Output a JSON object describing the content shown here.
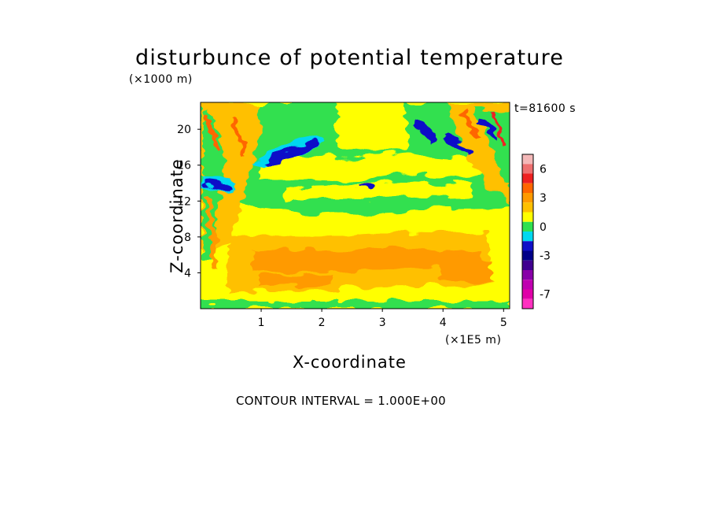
{
  "chart_data": {
    "type": "heatmap",
    "title": "disturbunce of potential temperature",
    "ylabel": "Z-coordinate",
    "xlabel": "X-coordinate",
    "y_unit_label": "(×1000 m)",
    "x_unit_label": "(×1E5 m)",
    "time_label": "t=81600 s",
    "contour_interval_label": "CONTOUR INTERVAL = 1.000E+00",
    "x_ticks": [
      "1",
      "2",
      "3",
      "4",
      "5"
    ],
    "x_tick_values": [
      1,
      2,
      3,
      4,
      5
    ],
    "y_ticks": [
      "4",
      "8",
      "12",
      "16",
      "20"
    ],
    "y_tick_values": [
      4,
      8,
      12,
      16,
      20
    ],
    "xlim": [
      0,
      5.1
    ],
    "ylim": [
      0,
      23
    ],
    "colorbar": {
      "tick_labels": [
        "6",
        "3",
        "0",
        "-3",
        "-7"
      ],
      "tick_values": [
        6,
        3,
        0,
        -3,
        -7
      ],
      "levels": [
        7,
        6,
        5,
        4,
        3,
        2,
        1,
        0,
        -1,
        -2,
        -3,
        -4,
        -5,
        -6,
        -7,
        -8
      ],
      "colors": [
        "#f4b8b8",
        "#ee7070",
        "#ee2020",
        "#ff6600",
        "#ff9a00",
        "#ffc000",
        "#ffff00",
        "#30e050",
        "#00d8f0",
        "#1010c8",
        "#000088",
        "#400090",
        "#8800a8",
        "#c000b0",
        "#e000a8",
        "#ff30c0"
      ]
    },
    "field_description_regions": [
      {
        "level": 1,
        "x": [
          0,
          5.1
        ],
        "z": [
          0,
          9
        ]
      },
      {
        "level": 2,
        "x": [
          0.5,
          4.7
        ],
        "z": [
          2,
          6
        ]
      },
      {
        "level": 0,
        "x": [
          0.8,
          4.8
        ],
        "z": [
          9,
          14
        ]
      },
      {
        "level": -2,
        "x": [
          1.0,
          2.0
        ],
        "z": [
          16,
          19
        ]
      },
      {
        "level": -2,
        "x": [
          0.05,
          0.55
        ],
        "z": [
          13,
          14.5
        ]
      },
      {
        "level": -2,
        "x": [
          3.6,
          4.0
        ],
        "z": [
          19,
          21
        ]
      }
    ]
  }
}
